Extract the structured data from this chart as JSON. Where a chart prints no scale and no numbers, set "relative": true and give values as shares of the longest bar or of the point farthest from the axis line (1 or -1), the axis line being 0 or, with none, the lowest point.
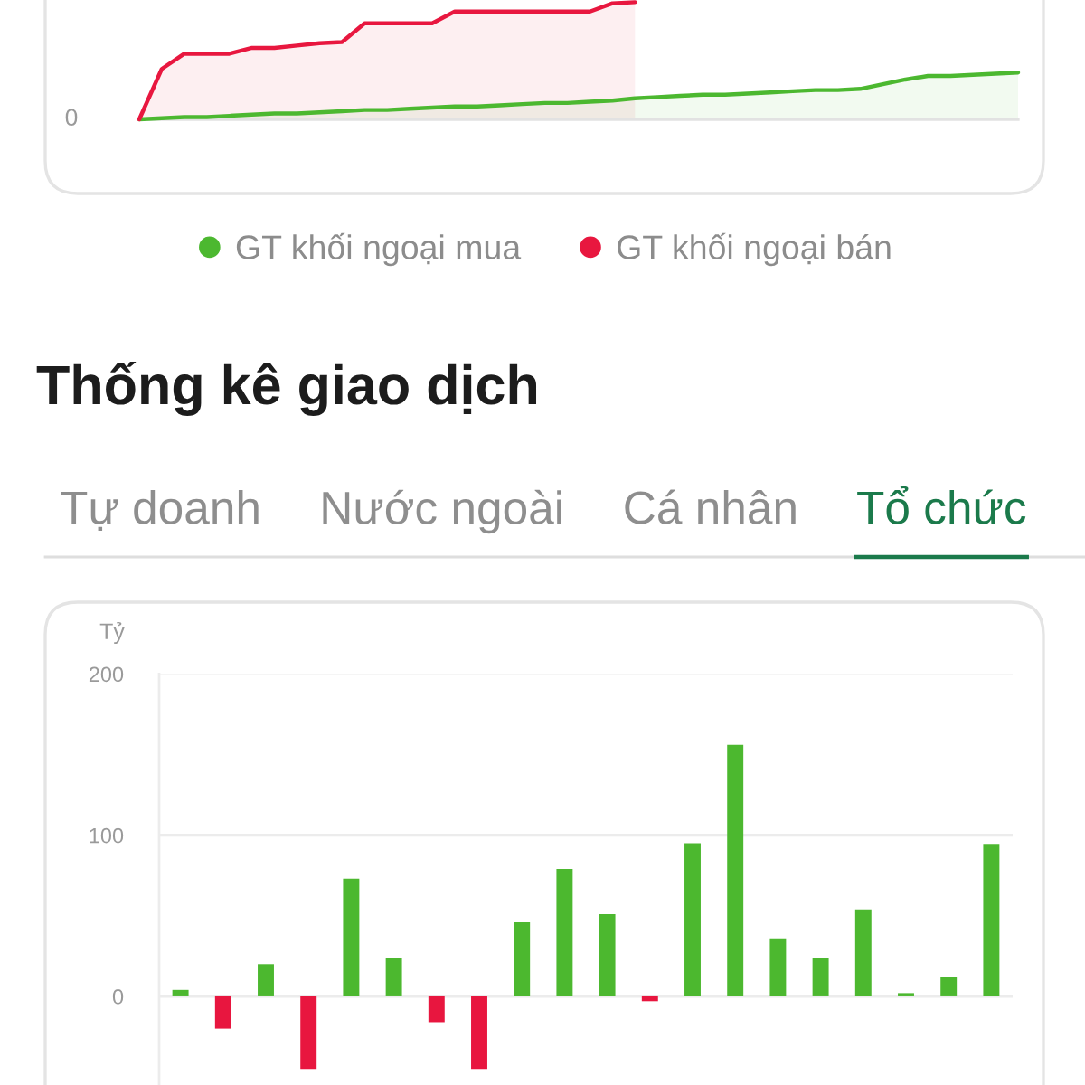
{
  "chart_data": [
    {
      "type": "area",
      "relative": true,
      "legend": "bottom",
      "categories": [
        null,
        null,
        null,
        null,
        null,
        null,
        null,
        null,
        null,
        null,
        null,
        null,
        null,
        null,
        null,
        null,
        null,
        null,
        null,
        null,
        null,
        null,
        null,
        null,
        null,
        null,
        null,
        null,
        null,
        null,
        null,
        null,
        null,
        null,
        null,
        null,
        null,
        null,
        null,
        null
      ],
      "series": [
        {
          "name": "GT khối ngoại mua",
          "color": "#4cb830",
          "values": [
            0,
            0.01,
            0.02,
            0.02,
            0.03,
            0.04,
            0.05,
            0.05,
            0.06,
            0.07,
            0.08,
            0.08,
            0.09,
            0.1,
            0.11,
            0.11,
            0.12,
            0.13,
            0.14,
            0.14,
            0.15,
            0.16,
            0.18,
            0.19,
            0.2,
            0.21,
            0.21,
            0.22,
            0.23,
            0.24,
            0.25,
            0.25,
            0.26,
            0.3,
            0.34,
            0.37,
            0.37,
            0.38,
            0.39,
            0.4
          ]
        },
        {
          "name": "GT khối ngoại bán",
          "color": "#e8173f",
          "values": [
            0,
            0.43,
            0.56,
            0.56,
            0.56,
            0.61,
            0.61,
            0.63,
            0.65,
            0.66,
            0.82,
            0.82,
            0.82,
            0.82,
            0.92,
            0.92,
            0.92,
            0.92,
            0.92,
            0.92,
            0.92,
            0.99,
            1,
            null,
            null,
            null,
            null,
            null,
            null,
            null,
            null,
            null,
            null,
            null,
            null,
            null,
            null,
            null,
            null,
            null
          ]
        }
      ],
      "annotations": [
        "0"
      ]
    },
    {
      "type": "bar",
      "title": "Thống kê giao dịch",
      "subtitle": "Tổ chức",
      "annotations": [
        "Tự doanh",
        "Nước ngoài",
        "Cá nhân"
      ],
      "ylabel": "Tỷ",
      "categories": [
        null,
        null,
        null,
        null,
        null,
        null,
        null,
        null,
        null,
        null,
        null,
        null,
        null,
        null,
        null,
        null,
        null,
        null,
        null,
        null
      ],
      "values": [
        4,
        -20,
        20,
        -45,
        73,
        24,
        -16,
        -45,
        46,
        79,
        51,
        -3,
        95,
        156,
        36,
        24,
        54,
        2,
        12,
        94
      ],
      "colors": [
        "#4cb82f",
        "#e8163f",
        "#4cb82f",
        "#e8163f",
        "#4cb82f",
        "#4cb82f",
        "#e8163f",
        "#e8163f",
        "#4cb82f",
        "#4cb82f",
        "#4cb82f",
        "#e8163f",
        "#4cb82f",
        "#4cb82f",
        "#4cb82f",
        "#4cb82f",
        "#4cb82f",
        "#4cb82f",
        "#4cb82f",
        "#4cb82f"
      ],
      "ylim": [
        -55,
        200
      ],
      "yticks": [
        0,
        100,
        200
      ],
      "grid": "y"
    }
  ]
}
